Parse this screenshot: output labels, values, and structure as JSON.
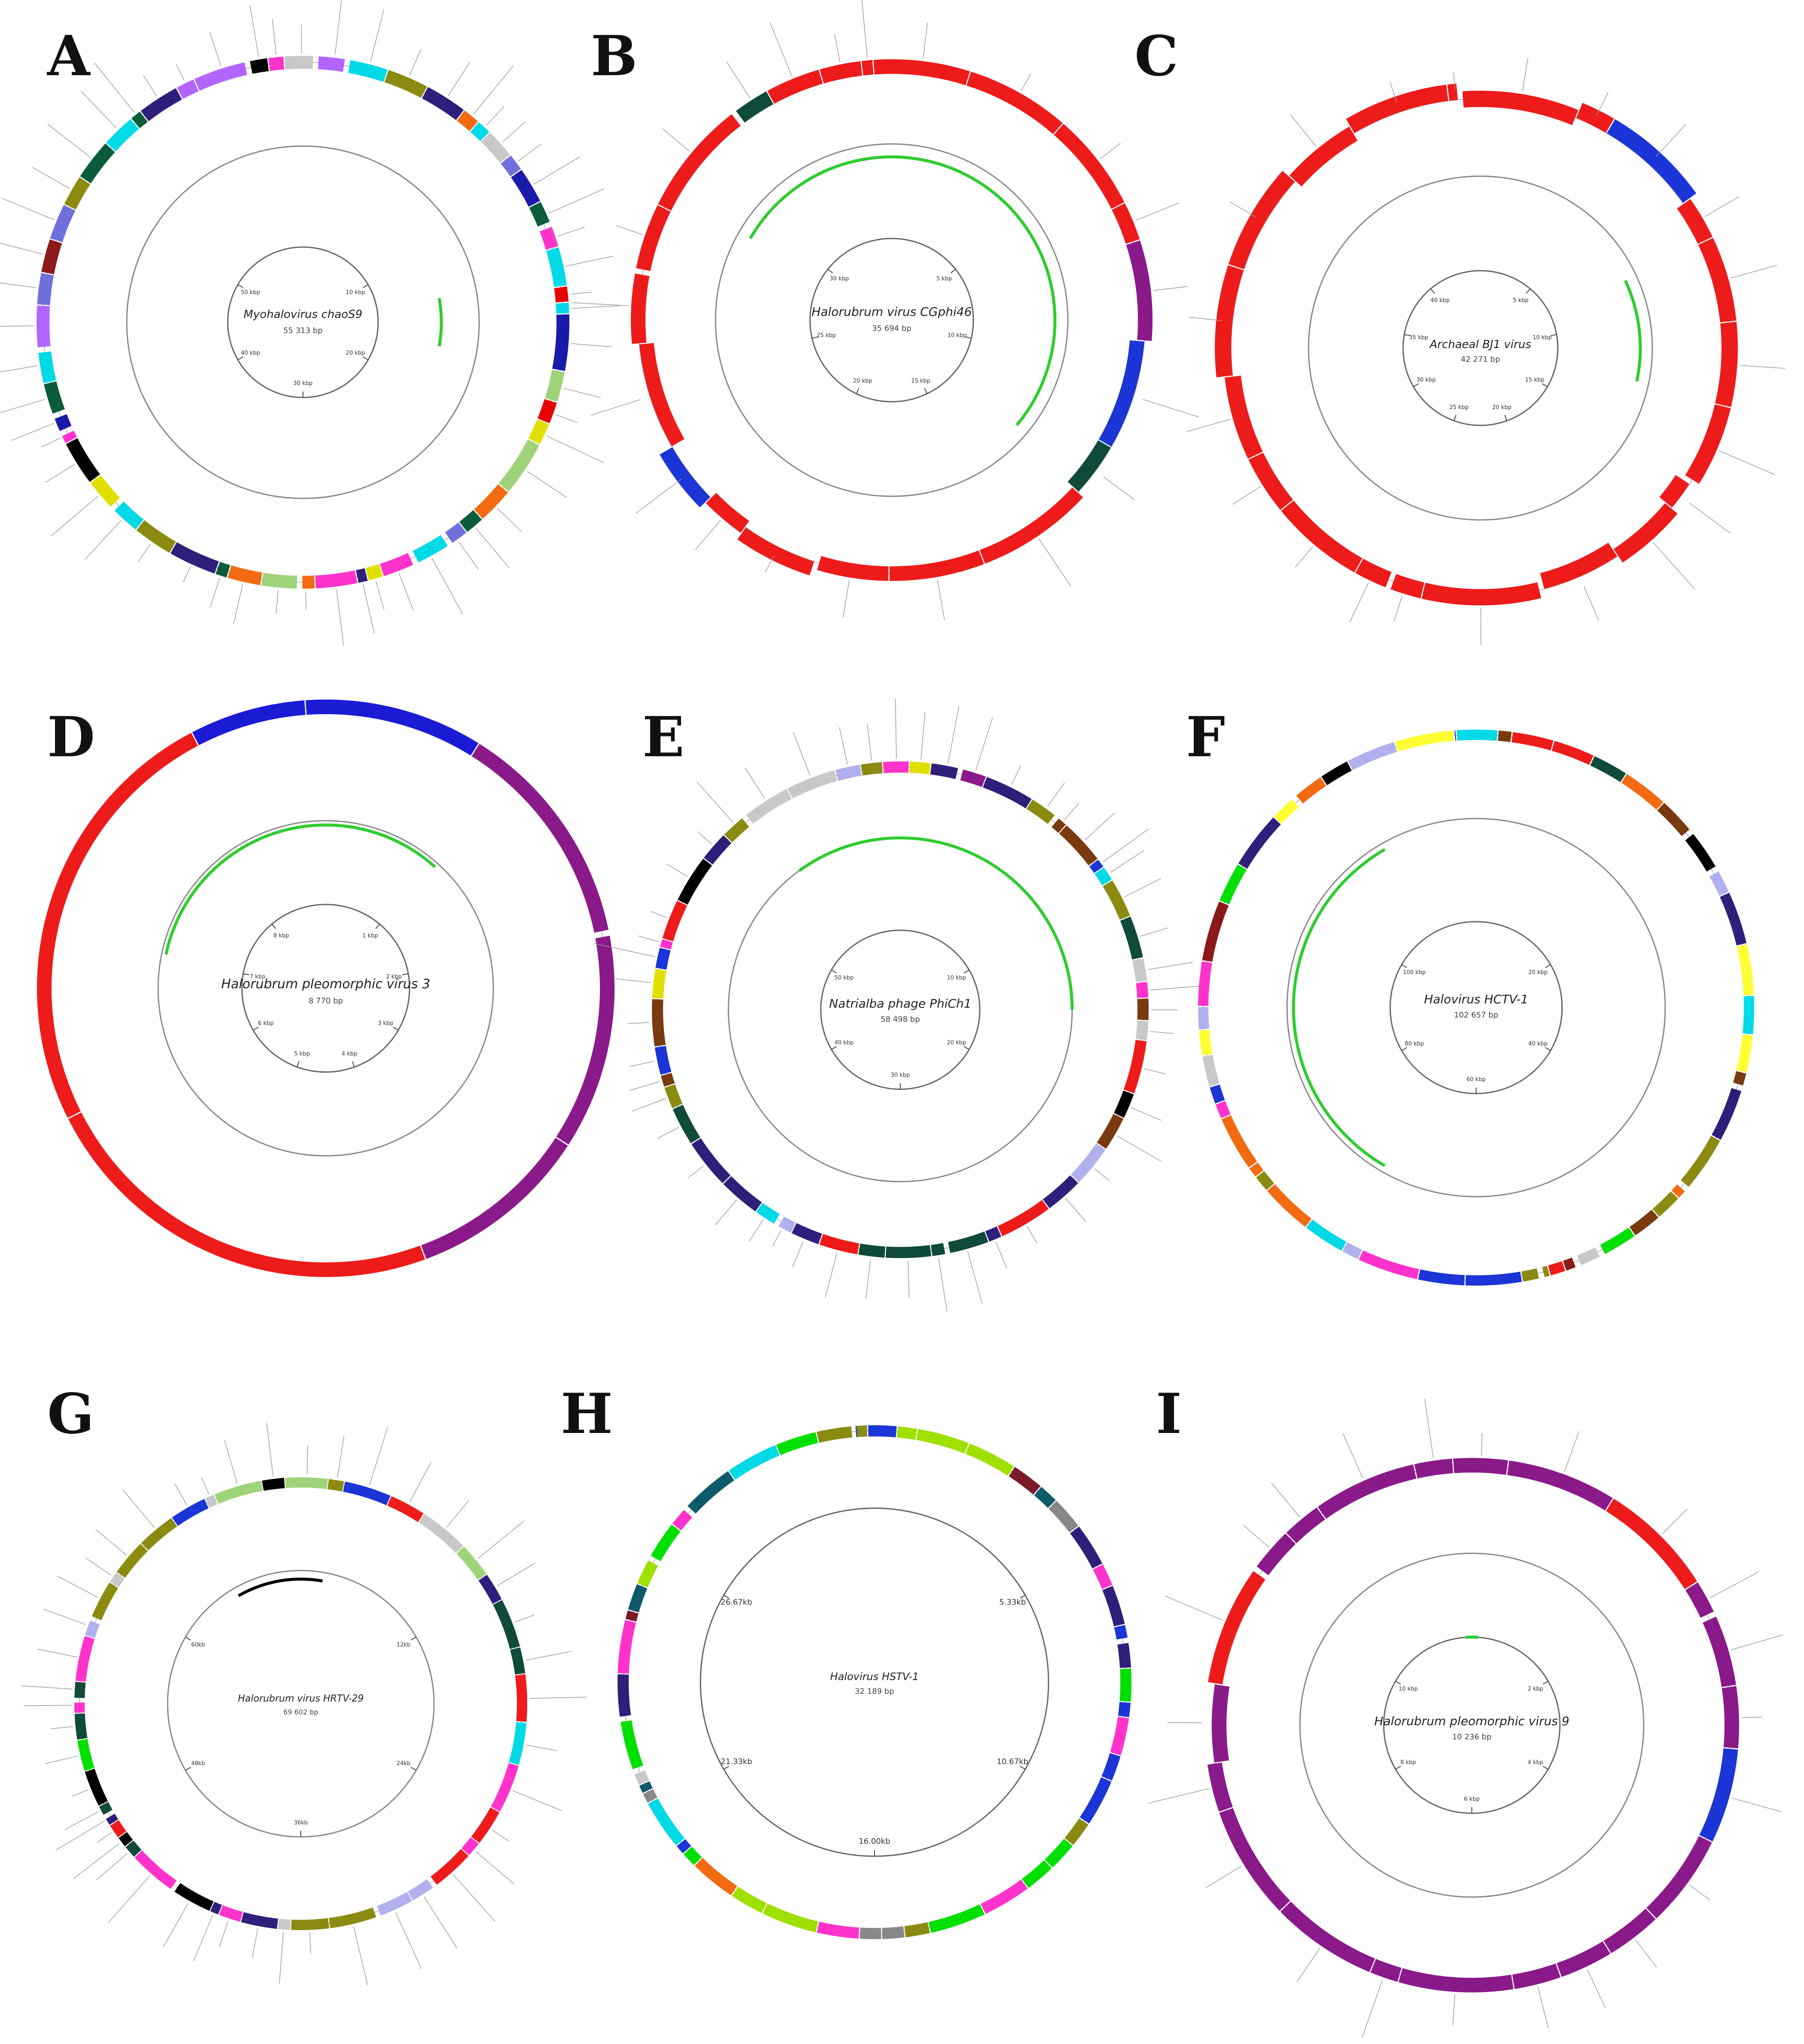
{
  "figure": {
    "panels": [
      {
        "letter": "A",
        "genome": "Myohalovirus chaoS9",
        "size": "55 313 bp",
        "ticks": [
          "10 kbp",
          "20 kbp",
          "30 kbp",
          "40 kbp",
          "50 kbp"
        ],
        "palette": [
          "#f26b12",
          "#8b8b12",
          "#2f1f7a",
          "#e60000",
          "#1a1aa8",
          "#0a5c3a",
          "#00d9e6",
          "#b266ff",
          "#c8c8c8",
          "#000000",
          "#8c1a1a",
          "#e0e000",
          "#9fd37a",
          "#ff33cc",
          "#7070dd"
        ],
        "style": "mixed",
        "band_color": "#2fcc2f"
      },
      {
        "letter": "B",
        "genome": "Halorubrum virus CGphi46",
        "size": "35 694 bp",
        "ticks": [
          "5 kbp",
          "10 kbp",
          "15 kbp",
          "20 kbp",
          "25 kbp",
          "30 kbp"
        ],
        "palette": [
          "#ee1b1b",
          "#1b35d6",
          "#0f4a3a",
          "#8a1a8a"
        ],
        "style": "mostly-red",
        "band_color": "#2fcc2f"
      },
      {
        "letter": "C",
        "genome": "Archaeal BJ1 virus",
        "size": "42 271 bp",
        "ticks": [
          "5 kbp",
          "10 kbp",
          "15 kbp",
          "20 kbp",
          "25 kbp",
          "30 kbp",
          "35 kbp",
          "40 kbp"
        ],
        "palette": [
          "#ee1b1b",
          "#1b35d6",
          "#0f4a3a",
          "#000000",
          "#7a1a1a",
          "#8a1a8a"
        ],
        "style": "mostly-red",
        "band_color": "#2fcc2f"
      },
      {
        "letter": "D",
        "genome": "Halorubrum pleomorphic virus 3",
        "size": "8 770 bp",
        "ticks": [
          "1 kbp",
          "2 kbp",
          "3 kbp",
          "4 kbp",
          "5 kbp",
          "6 kbp",
          "7 kbp",
          "8 kbp"
        ],
        "palette": [
          "#1b1bd6",
          "#8a1a8a",
          "#ee1b1b"
        ],
        "style": "large-blocks",
        "band_color": "#2fcc2f"
      },
      {
        "letter": "E",
        "genome": "Natrialba phage PhiCh1",
        "size": "58 498 bp",
        "ticks": [
          "10 kbp",
          "20 kbp",
          "30 kbp",
          "40 kbp",
          "50 kbp"
        ],
        "palette": [
          "#8a1a8a",
          "#7a3a10",
          "#0f4a3a",
          "#1b35d6",
          "#ee1b1b",
          "#00e000",
          "#00d9e6",
          "#b0b0ee",
          "#ff33cc",
          "#e0e000",
          "#8b8b12",
          "#c8c8c8",
          "#000000",
          "#2f1f7a"
        ],
        "style": "mixed",
        "band_color": "#2fcc2f"
      },
      {
        "letter": "F",
        "genome": "Halovirus HCTV-1",
        "size": "102 657 bp",
        "ticks": [
          "20 kbp",
          "40 kbp",
          "60 kbp",
          "80 kbp",
          "100 kbp"
        ],
        "palette": [
          "#b0b0ee",
          "#00d9e6",
          "#8b8b12",
          "#7a3a10",
          "#ffff33",
          "#2f1f7a",
          "#ff33cc",
          "#0f4a3a",
          "#ee1b1b",
          "#00e000",
          "#c8c8c8",
          "#000000",
          "#8a1a1a",
          "#1b35d6",
          "#f26b12"
        ],
        "style": "mixed",
        "band_color": "#2fcc2f"
      },
      {
        "letter": "G",
        "genome": "Halorubrum virus HRTV-29",
        "size": "69 602 bp",
        "ticks": [
          "12kb",
          "24kb",
          "36kb",
          "48kb",
          "60kb"
        ],
        "palette": [
          "#ee1b1b",
          "#000000",
          "#8b8b12",
          "#1b35d6",
          "#c8c8c8",
          "#00d9e6",
          "#b0b0ee",
          "#9fd37a",
          "#00e000",
          "#ff33cc",
          "#0f4a3a",
          "#2f1f7a"
        ],
        "style": "mixed",
        "band_color": "#000000"
      },
      {
        "letter": "H",
        "genome": "Halovirus HSTV-1",
        "size": "32 189 bp",
        "ticks": [
          "5.33kb",
          "10.67kb",
          "16.00kb",
          "21.33kb",
          "26.67kb"
        ],
        "palette": [
          "#7a1a2a",
          "#8b8b12",
          "#1b35d6",
          "#ee1b1b",
          "#888888",
          "#00e000",
          "#9fe000",
          "#0f5a6a",
          "#ff33cc",
          "#00d9e6",
          "#c8c8c8",
          "#e0e000",
          "#2f1f7a",
          "#f26b12"
        ],
        "style": "mixed",
        "band_color": "#2fcc2f"
      },
      {
        "letter": "I",
        "genome": "Halorubrum pleomorphic virus 9",
        "size": "10 236 bp",
        "ticks": [
          "2 kbp",
          "4 kbp",
          "6 kbp",
          "8 kbp",
          "10 kbp"
        ],
        "palette": [
          "#8a1a8a",
          "#ee1b1b",
          "#1b35d6",
          "#0f4a3a"
        ],
        "style": "mostly-purple",
        "band_color": "#2fcc2f"
      }
    ]
  }
}
